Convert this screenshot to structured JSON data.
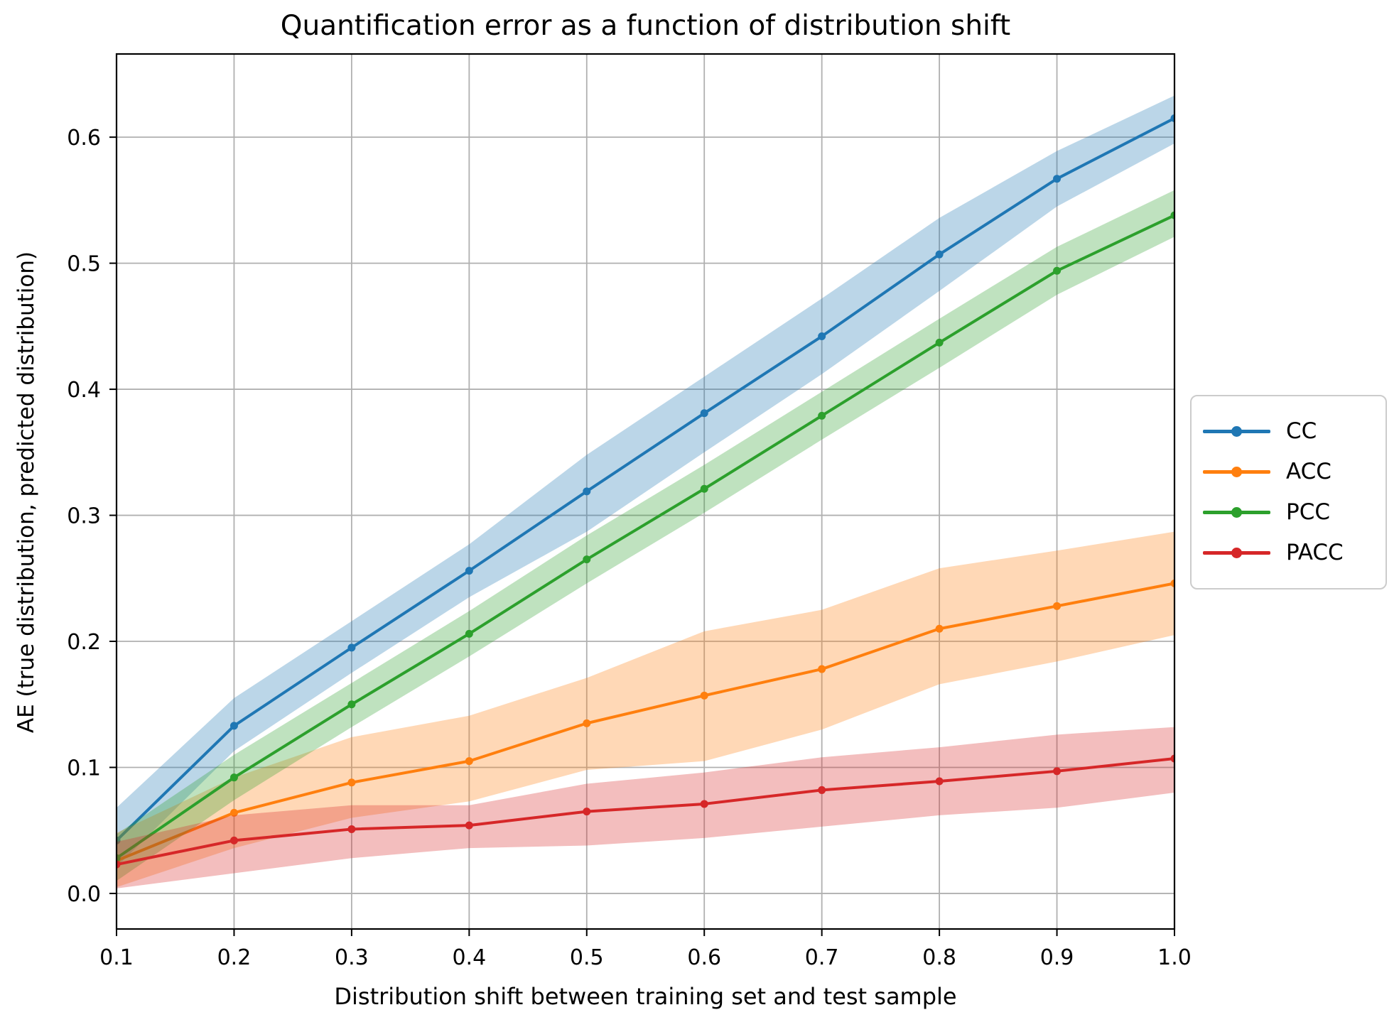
{
  "chart_data": {
    "type": "line",
    "title": "Quantification error as a function of distribution shift",
    "xlabel": "Distribution shift between training set and test sample",
    "ylabel": "AE (true distribution, predicted distribution)",
    "grid": true,
    "legend_position": "outside-right",
    "xlim": [
      0.1,
      1.0
    ],
    "ylim": [
      -0.0282,
      0.666
    ],
    "x": [
      0.1,
      0.2,
      0.3,
      0.4,
      0.5,
      0.6,
      0.7,
      0.8,
      0.9,
      1.0
    ],
    "x_tick_labels": [
      "0.1",
      "0.2",
      "0.3",
      "0.4",
      "0.5",
      "0.6",
      "0.7",
      "0.8",
      "0.9",
      "1.0"
    ],
    "y_tick_values": [
      0.0,
      0.1,
      0.2,
      0.3,
      0.4,
      0.5,
      0.6
    ],
    "y_tick_labels": [
      "0.0",
      "0.1",
      "0.2",
      "0.3",
      "0.4",
      "0.5",
      "0.6"
    ],
    "grid_color": "#b0b0b0",
    "band_alpha": 0.3,
    "series": [
      {
        "name": "CC",
        "color": "#1f77b4",
        "values": [
          0.042,
          0.133,
          0.195,
          0.256,
          0.319,
          0.381,
          0.442,
          0.507,
          0.567,
          0.615
        ],
        "band_lower": [
          0.021,
          0.113,
          0.175,
          0.235,
          0.287,
          0.35,
          0.412,
          0.478,
          0.545,
          0.595
        ],
        "band_upper": [
          0.068,
          0.155,
          0.216,
          0.277,
          0.348,
          0.41,
          0.472,
          0.536,
          0.589,
          0.633
        ]
      },
      {
        "name": "ACC",
        "color": "#ff7f0e",
        "values": [
          0.026,
          0.064,
          0.088,
          0.105,
          0.135,
          0.157,
          0.178,
          0.21,
          0.228,
          0.246
        ],
        "band_lower": [
          0.005,
          0.036,
          0.06,
          0.073,
          0.098,
          0.105,
          0.13,
          0.166,
          0.184,
          0.205
        ],
        "band_upper": [
          0.048,
          0.092,
          0.124,
          0.141,
          0.171,
          0.208,
          0.225,
          0.258,
          0.272,
          0.287
        ]
      },
      {
        "name": "PCC",
        "color": "#2ca02c",
        "values": [
          0.028,
          0.092,
          0.15,
          0.206,
          0.265,
          0.321,
          0.379,
          0.437,
          0.494,
          0.538
        ],
        "band_lower": [
          0.01,
          0.074,
          0.132,
          0.188,
          0.246,
          0.302,
          0.36,
          0.417,
          0.475,
          0.521
        ],
        "band_upper": [
          0.047,
          0.11,
          0.167,
          0.224,
          0.284,
          0.34,
          0.398,
          0.456,
          0.513,
          0.558
        ]
      },
      {
        "name": "PACC",
        "color": "#d62728",
        "values": [
          0.023,
          0.042,
          0.051,
          0.054,
          0.065,
          0.071,
          0.082,
          0.089,
          0.097,
          0.107
        ],
        "band_lower": [
          0.004,
          0.016,
          0.028,
          0.036,
          0.038,
          0.044,
          0.053,
          0.062,
          0.068,
          0.08
        ],
        "band_upper": [
          0.041,
          0.062,
          0.07,
          0.07,
          0.087,
          0.096,
          0.108,
          0.116,
          0.126,
          0.132
        ]
      }
    ]
  }
}
